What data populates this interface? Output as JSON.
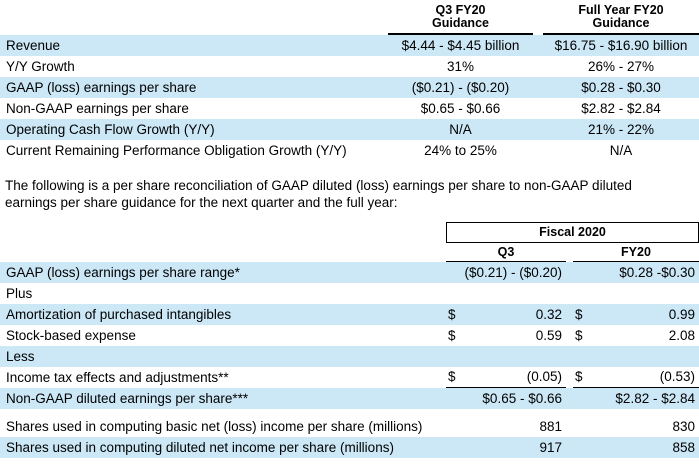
{
  "colors": {
    "row_highlight": "#cce8f7",
    "rule": "#000000"
  },
  "table1": {
    "col_headers": [
      {
        "line1": "Q3 FY20",
        "line2": "Guidance"
      },
      {
        "line1": "Full Year FY20",
        "line2": "Guidance"
      }
    ],
    "rows": [
      {
        "label": "Revenue",
        "q3": "$4.44 - $4.45 billion",
        "fy": "$16.75 - $16.90 billion"
      },
      {
        "label": "Y/Y Growth",
        "q3": "31%",
        "fy": "26% - 27%"
      },
      {
        "label": "GAAP (loss) earnings per share",
        "q3": "($0.21) - ($0.20)",
        "fy": "$0.28 - $0.30"
      },
      {
        "label": "Non-GAAP earnings per share",
        "q3": "$0.65 - $0.66",
        "fy": "$2.82 - $2.84"
      },
      {
        "label": "Operating Cash Flow Growth (Y/Y)",
        "q3": "N/A",
        "fy": "21% - 22%"
      },
      {
        "label": "Current Remaining Performance Obligation Growth (Y/Y)",
        "q3": "24% to 25%",
        "fy": "N/A"
      }
    ]
  },
  "paragraph": {
    "line1": "The following is a per share reconciliation of GAAP diluted (loss) earnings per share to non-GAAP diluted",
    "line2": "earnings per share guidance for the next quarter and the full year:"
  },
  "table2": {
    "group_header": "Fiscal 2020",
    "col_headers": {
      "q3": "Q3",
      "fy": "FY20"
    },
    "rows": [
      {
        "label": "GAAP (loss) earnings per share range*",
        "q3": "($0.21) - ($0.20)",
        "fy": "$0.28 -$0.30"
      },
      {
        "label": "Plus"
      },
      {
        "label": "Amortization of purchased intangibles",
        "q3_cur": "$",
        "q3": "0.32",
        "fy_cur": "$",
        "fy": "0.99"
      },
      {
        "label": "Stock-based expense",
        "q3_cur": "$",
        "q3": "0.59",
        "fy_cur": "$",
        "fy": "2.08"
      },
      {
        "label": "Less"
      },
      {
        "label": "Income tax effects and adjustments**",
        "q3_cur": "$",
        "q3": "(0.05)",
        "fy_cur": "$",
        "fy": "(0.53)"
      },
      {
        "label": "Non-GAAP diluted earnings per share***",
        "q3": "$0.65 - $0.66",
        "fy": "$2.82 - $2.84"
      },
      {
        "label": "Shares used in computing basic net (loss) income per share (millions)",
        "q3": "881",
        "fy": "830"
      },
      {
        "label": "Shares used in computing diluted net income per share (millions)",
        "q3": "917",
        "fy": "858"
      }
    ]
  }
}
